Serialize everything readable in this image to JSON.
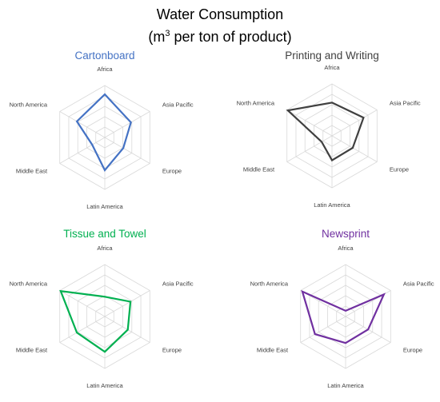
{
  "title": {
    "line1": "Water Consumption",
    "line2_pre": "(m",
    "line2_sup": "3",
    "line2_post": " per ton of product)"
  },
  "chart_data": [
    {
      "type": "radar",
      "title": "Cartonboard",
      "color": "#4472c4",
      "categories": [
        "Africa",
        "Asia Pacific",
        "Europe",
        "Latin America",
        "Middle East",
        "North America"
      ],
      "values": [
        0.83,
        0.58,
        0.41,
        0.63,
        0.28,
        0.62
      ],
      "rlim": [
        0,
        1
      ],
      "gridlines": 5
    },
    {
      "type": "radar",
      "title": "Printing and Writing",
      "color": "#404040",
      "categories": [
        "Africa",
        "Asia Pacific",
        "Europe",
        "Latin America",
        "Middle East",
        "North America"
      ],
      "values": [
        0.64,
        0.7,
        0.46,
        0.47,
        0.23,
        0.98
      ],
      "rlim": [
        0,
        1
      ],
      "gridlines": 5
    },
    {
      "type": "radar",
      "title": "Tissue and Towel",
      "color": "#00b050",
      "categories": [
        "Africa",
        "Asia Pacific",
        "Europe",
        "Latin America",
        "Middle East",
        "North America"
      ],
      "values": [
        0.38,
        0.57,
        0.51,
        0.68,
        0.62,
        0.98
      ],
      "rlim": [
        0,
        1
      ],
      "gridlines": 5
    },
    {
      "type": "radar",
      "title": "Newsprint",
      "color": "#7030a0",
      "categories": [
        "Africa",
        "Asia Pacific",
        "Europe",
        "Latin America",
        "Middle East",
        "North America"
      ],
      "values": [
        0.11,
        0.85,
        0.5,
        0.51,
        0.68,
        0.96
      ],
      "rlim": [
        0,
        1
      ],
      "gridlines": 5
    }
  ]
}
